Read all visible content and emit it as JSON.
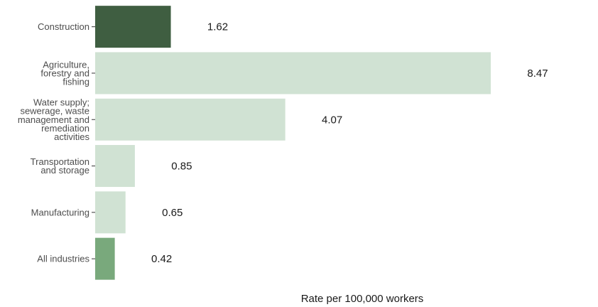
{
  "chart_data": {
    "type": "bar",
    "orientation": "horizontal",
    "categories": [
      [
        "Construction"
      ],
      [
        "Agriculture,",
        "forestry and",
        "fishing"
      ],
      [
        "Water supply;",
        "sewerage, waste",
        "management and",
        "remediation",
        "activities"
      ],
      [
        "Transportation",
        "and storage"
      ],
      [
        "Manufacturing"
      ],
      [
        "All industries"
      ]
    ],
    "values": [
      1.62,
      8.47,
      4.07,
      0.85,
      0.65,
      0.42
    ],
    "value_labels": [
      "1.62",
      "8.47",
      "4.07",
      "0.85",
      "0.65",
      "0.42"
    ],
    "bar_colors": [
      "#3f5e41",
      "#d0e2d3",
      "#d0e2d3",
      "#d0e2d3",
      "#d0e2d3",
      "#79a97c"
    ],
    "xlabel": "Rate per 100,000 workers",
    "ylabel": "",
    "title": "",
    "xlim": [
      0,
      8.47
    ],
    "grid": false,
    "legend": "none"
  }
}
